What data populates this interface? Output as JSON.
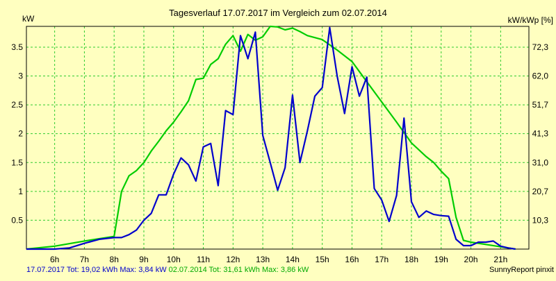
{
  "chart_data": {
    "type": "line",
    "title": "Tagesverlauf 17.07.2017 im Vergleich zum 02.07.2014",
    "ylabel_left": "kW",
    "ylabel_right": "kW/kWp [%]",
    "xlim": [
      5.05,
      21.95
    ],
    "ylim": [
      0,
      3.86
    ],
    "x_ticks": [
      {
        "x": 6,
        "label": "6h"
      },
      {
        "x": 7,
        "label": "7h"
      },
      {
        "x": 8,
        "label": "8h"
      },
      {
        "x": 9,
        "label": "9h"
      },
      {
        "x": 10,
        "label": "10h"
      },
      {
        "x": 11,
        "label": "11h"
      },
      {
        "x": 12,
        "label": "12h"
      },
      {
        "x": 13,
        "label": "13h"
      },
      {
        "x": 14,
        "label": "14h"
      },
      {
        "x": 15,
        "label": "15h"
      },
      {
        "x": 16,
        "label": "16h"
      },
      {
        "x": 17,
        "label": "17h"
      },
      {
        "x": 18,
        "label": "18h"
      },
      {
        "x": 19,
        "label": "19h"
      },
      {
        "x": 20,
        "label": "20h"
      },
      {
        "x": 21,
        "label": "21h"
      }
    ],
    "y_ticks_left": [
      {
        "y": 0.5,
        "label": "0.5"
      },
      {
        "y": 1,
        "label": "1"
      },
      {
        "y": 1.5,
        "label": "1.5"
      },
      {
        "y": 2,
        "label": "2"
      },
      {
        "y": 2.5,
        "label": "2.5"
      },
      {
        "y": 3,
        "label": "3"
      },
      {
        "y": 3.5,
        "label": "3.5"
      }
    ],
    "y_ticks_right": [
      {
        "y": 0.5,
        "label": "10,3"
      },
      {
        "y": 1,
        "label": "20,7"
      },
      {
        "y": 1.5,
        "label": "31,0"
      },
      {
        "y": 2,
        "label": "41,3"
      },
      {
        "y": 2.5,
        "label": "51,7"
      },
      {
        "y": 3,
        "label": "62,0"
      },
      {
        "y": 3.5,
        "label": "72,3"
      }
    ],
    "grid": true,
    "series": [
      {
        "name": "17.07.2017",
        "color": "#0000cc",
        "points": [
          [
            5.05,
            0
          ],
          [
            6.0,
            0
          ],
          [
            6.5,
            0.02
          ],
          [
            7.0,
            0.1
          ],
          [
            7.5,
            0.17
          ],
          [
            8.0,
            0.2
          ],
          [
            8.25,
            0.2
          ],
          [
            8.5,
            0.25
          ],
          [
            8.75,
            0.33
          ],
          [
            9.0,
            0.5
          ],
          [
            9.25,
            0.62
          ],
          [
            9.5,
            0.94
          ],
          [
            9.75,
            0.94
          ],
          [
            10.0,
            1.3
          ],
          [
            10.25,
            1.58
          ],
          [
            10.5,
            1.46
          ],
          [
            10.75,
            1.18
          ],
          [
            11.0,
            1.77
          ],
          [
            11.25,
            1.83
          ],
          [
            11.5,
            1.1
          ],
          [
            11.75,
            2.4
          ],
          [
            12.0,
            2.33
          ],
          [
            12.25,
            3.7
          ],
          [
            12.5,
            3.3
          ],
          [
            12.75,
            3.76
          ],
          [
            13.0,
            1.97
          ],
          [
            13.25,
            1.5
          ],
          [
            13.5,
            1.02
          ],
          [
            13.75,
            1.41
          ],
          [
            14.0,
            2.67
          ],
          [
            14.25,
            1.5
          ],
          [
            14.5,
            2.05
          ],
          [
            14.75,
            2.65
          ],
          [
            15.0,
            2.8
          ],
          [
            15.25,
            3.84
          ],
          [
            15.5,
            3.0
          ],
          [
            15.75,
            2.35
          ],
          [
            16.0,
            3.16
          ],
          [
            16.25,
            2.65
          ],
          [
            16.5,
            2.98
          ],
          [
            16.75,
            1.05
          ],
          [
            17.0,
            0.85
          ],
          [
            17.25,
            0.48
          ],
          [
            17.5,
            0.93
          ],
          [
            17.75,
            2.27
          ],
          [
            18.0,
            0.82
          ],
          [
            18.25,
            0.55
          ],
          [
            18.5,
            0.66
          ],
          [
            18.75,
            0.6
          ],
          [
            19.0,
            0.58
          ],
          [
            19.25,
            0.57
          ],
          [
            19.5,
            0.17
          ],
          [
            19.75,
            0.06
          ],
          [
            20.0,
            0.06
          ],
          [
            20.25,
            0.12
          ],
          [
            20.5,
            0.12
          ],
          [
            20.75,
            0.14
          ],
          [
            21.0,
            0.05
          ],
          [
            21.25,
            0.02
          ],
          [
            21.5,
            0.0
          ]
        ]
      },
      {
        "name": "02.07.2014",
        "color": "#00cc00",
        "points": [
          [
            5.05,
            0
          ],
          [
            6.0,
            0.05
          ],
          [
            7.0,
            0.14
          ],
          [
            8.0,
            0.22
          ],
          [
            8.25,
            1.0
          ],
          [
            8.5,
            1.27
          ],
          [
            8.75,
            1.36
          ],
          [
            9.0,
            1.5
          ],
          [
            9.25,
            1.7
          ],
          [
            9.5,
            1.87
          ],
          [
            9.75,
            2.05
          ],
          [
            10.0,
            2.2
          ],
          [
            10.25,
            2.38
          ],
          [
            10.5,
            2.57
          ],
          [
            10.75,
            2.94
          ],
          [
            11.0,
            2.96
          ],
          [
            11.25,
            3.2
          ],
          [
            11.5,
            3.3
          ],
          [
            11.75,
            3.55
          ],
          [
            12.0,
            3.7
          ],
          [
            12.25,
            3.43
          ],
          [
            12.5,
            3.72
          ],
          [
            12.75,
            3.62
          ],
          [
            13.0,
            3.68
          ],
          [
            13.25,
            3.86
          ],
          [
            13.5,
            3.85
          ],
          [
            13.75,
            3.8
          ],
          [
            14.0,
            3.83
          ],
          [
            14.25,
            3.77
          ],
          [
            14.5,
            3.7
          ],
          [
            15.0,
            3.63
          ],
          [
            15.5,
            3.45
          ],
          [
            16.0,
            3.25
          ],
          [
            16.5,
            2.9
          ],
          [
            17.0,
            2.55
          ],
          [
            17.5,
            2.2
          ],
          [
            18.0,
            1.84
          ],
          [
            18.5,
            1.6
          ],
          [
            18.75,
            1.5
          ],
          [
            19.0,
            1.35
          ],
          [
            19.25,
            1.22
          ],
          [
            19.5,
            0.55
          ],
          [
            19.75,
            0.15
          ],
          [
            20.0,
            0.12
          ],
          [
            20.5,
            0.08
          ],
          [
            21.0,
            0.04
          ],
          [
            21.5,
            0.0
          ]
        ]
      }
    ]
  },
  "footer": {
    "series1_text": "17.07.2017 Tot: 19,02 kWh Max: 3,84 kW",
    "series2_text": "02.07.2014 Tot: 31,61 kWh Max: 3,86 kW",
    "credit": "SunnyReport pinxit"
  }
}
